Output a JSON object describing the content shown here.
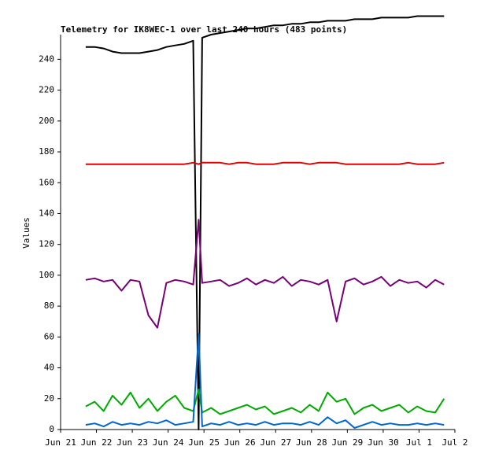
{
  "chart_data": {
    "type": "line",
    "title": "Telemetry for IK8WEC-1 over last 240 hours (483 points)",
    "y_label": "Values",
    "x": [
      0.7,
      0.95,
      1.2,
      1.45,
      1.7,
      1.95,
      2.2,
      2.45,
      2.7,
      2.95,
      3.2,
      3.45,
      3.7,
      3.85,
      3.95,
      4.2,
      4.45,
      4.7,
      4.95,
      5.2,
      5.45,
      5.7,
      5.95,
      6.2,
      6.45,
      6.7,
      6.95,
      7.2,
      7.45,
      7.7,
      7.95,
      8.2,
      8.45,
      8.7,
      8.95,
      9.2,
      9.45,
      9.7,
      9.95,
      10.2,
      10.45,
      10.7
    ],
    "series": [
      {
        "color": "#000000",
        "values": [
          248,
          248,
          247,
          245,
          244,
          244,
          244,
          245,
          246,
          248,
          249,
          250,
          252,
          0,
          254,
          256,
          257,
          258,
          259,
          260,
          260,
          261,
          262,
          262,
          263,
          263,
          264,
          264,
          265,
          265,
          265,
          266,
          266,
          266,
          267,
          267,
          267,
          267,
          268,
          268,
          268,
          268
        ]
      },
      {
        "color": "#dd0000",
        "values": [
          172,
          172,
          172,
          172,
          172,
          172,
          172,
          172,
          172,
          172,
          172,
          172,
          173,
          172,
          173,
          173,
          173,
          172,
          173,
          173,
          172,
          172,
          172,
          173,
          173,
          173,
          172,
          173,
          173,
          173,
          172,
          172,
          172,
          172,
          172,
          172,
          172,
          173,
          172,
          172,
          172,
          173
        ]
      },
      {
        "color": "#770077",
        "values": [
          97,
          98,
          96,
          97,
          90,
          97,
          96,
          74,
          66,
          95,
          97,
          96,
          94,
          136,
          95,
          96,
          97,
          93,
          95,
          98,
          94,
          97,
          95,
          99,
          93,
          97,
          96,
          94,
          97,
          70,
          96,
          98,
          94,
          96,
          99,
          93,
          97,
          95,
          96,
          92,
          97,
          94
        ]
      },
      {
        "color": "#00aa00",
        "values": [
          15,
          18,
          12,
          22,
          16,
          24,
          14,
          20,
          12,
          18,
          22,
          14,
          12,
          26,
          11,
          14,
          10,
          12,
          14,
          16,
          13,
          15,
          10,
          12,
          14,
          11,
          16,
          12,
          24,
          18,
          20,
          10,
          14,
          16,
          12,
          14,
          16,
          11,
          15,
          12,
          11,
          20
        ]
      },
      {
        "color": "#0066cc",
        "values": [
          3,
          4,
          2,
          5,
          3,
          4,
          3,
          5,
          4,
          6,
          3,
          4,
          5,
          62,
          2,
          4,
          3,
          5,
          3,
          4,
          3,
          5,
          3,
          4,
          4,
          3,
          5,
          3,
          8,
          4,
          6,
          1,
          3,
          5,
          3,
          4,
          3,
          3,
          4,
          3,
          4,
          3
        ]
      }
    ],
    "xlim": [
      0,
      11
    ],
    "xticks": [
      {
        "value": 0,
        "label": "Jun 21"
      },
      {
        "value": 1,
        "label": "Jun 22"
      },
      {
        "value": 2,
        "label": "Jun 23"
      },
      {
        "value": 3,
        "label": "Jun 24"
      },
      {
        "value": 4,
        "label": "Jun 25"
      },
      {
        "value": 5,
        "label": "Jun 26"
      },
      {
        "value": 6,
        "label": "Jun 27"
      },
      {
        "value": 7,
        "label": "Jun 28"
      },
      {
        "value": 8,
        "label": "Jun 29"
      },
      {
        "value": 9,
        "label": "Jun 30"
      },
      {
        "value": 10,
        "label": "Jul 1"
      },
      {
        "value": 11,
        "label": "Jul 2"
      }
    ],
    "ylim": [
      0,
      256
    ],
    "yticks": [
      0,
      20,
      40,
      60,
      80,
      100,
      120,
      140,
      160,
      180,
      200,
      220,
      240
    ],
    "grid": false
  }
}
